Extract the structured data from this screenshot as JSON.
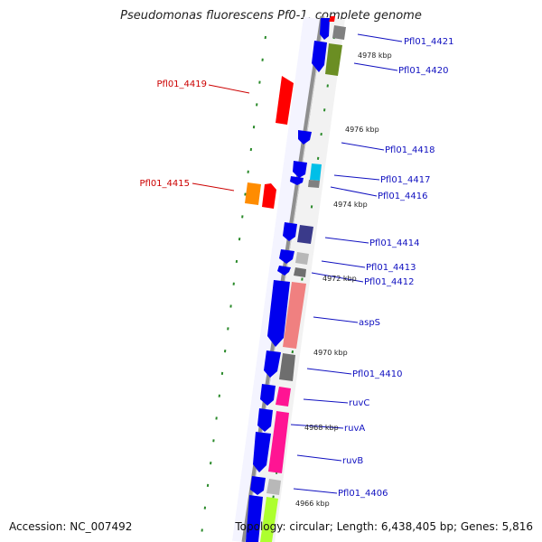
{
  "title": "Pseudomonas fluorescens Pf0-1, complete genome",
  "footer": {
    "accession": "Accession: NC_007492",
    "topology": "Topology: circular; Length: 6,438,405 bp; Genes: 5,816"
  },
  "ticks": [
    "4978 kbp",
    "4976 kbp",
    "4974 kbp",
    "4972 kbp",
    "4970 kbp",
    "4968 kbp",
    "4966 kbp"
  ],
  "right_labels": [
    "Pfl01_4421",
    "Pfl01_4420",
    "Pfl01_4418",
    "Pfl01_4417",
    "Pfl01_4416",
    "Pfl01_4414",
    "Pfl01_4413",
    "Pfl01_4412",
    "aspS",
    "Pfl01_4410",
    "ruvC",
    "ruvA",
    "ruvB",
    "Pfl01_4406"
  ],
  "left_labels": [
    "Pfl01_4419",
    "Pfl01_4415"
  ],
  "colors": {
    "backbone": "#9a9a9a",
    "forward_gene": "#ff0000",
    "reverse_gene": "#0000ee",
    "right_label": "#1010c0",
    "left_label": "#cc0000",
    "tick_dot": "#2a8a2a"
  }
}
